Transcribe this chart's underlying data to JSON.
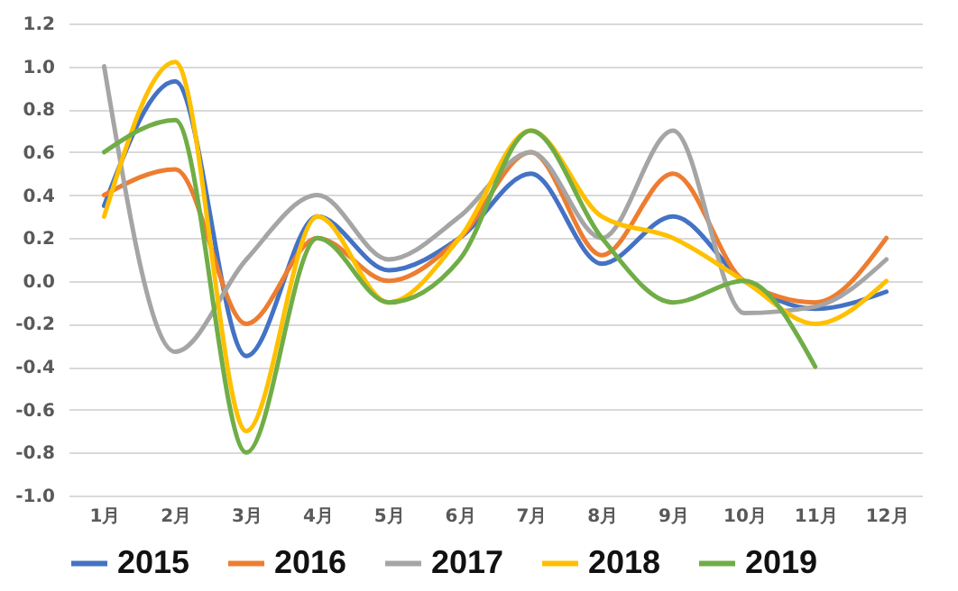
{
  "chart_data": {
    "type": "line",
    "categories": [
      "1月",
      "2月",
      "3月",
      "4月",
      "5月",
      "6月",
      "7月",
      "8月",
      "9月",
      "10月",
      "11月",
      "12月"
    ],
    "series": [
      {
        "name": "2015",
        "color": "#4472c4",
        "values": [
          0.35,
          0.93,
          -0.35,
          0.3,
          0.05,
          0.2,
          0.5,
          0.08,
          0.3,
          0.0,
          -0.13,
          -0.05
        ]
      },
      {
        "name": "2016",
        "color": "#ed7d31",
        "values": [
          0.4,
          0.52,
          -0.2,
          0.2,
          0.0,
          0.2,
          0.6,
          0.12,
          0.5,
          0.0,
          -0.1,
          0.2
        ]
      },
      {
        "name": "2017",
        "color": "#a5a5a5",
        "values": [
          1.0,
          -0.33,
          0.1,
          0.4,
          0.1,
          0.3,
          0.6,
          0.2,
          0.7,
          -0.15,
          -0.12,
          0.1
        ]
      },
      {
        "name": "2018",
        "color": "#ffc000",
        "values": [
          0.3,
          1.02,
          -0.7,
          0.3,
          -0.1,
          0.2,
          0.7,
          0.3,
          0.2,
          0.0,
          -0.2,
          0.0
        ]
      },
      {
        "name": "2019",
        "color": "#70ad47",
        "values": [
          0.6,
          0.75,
          -0.8,
          0.2,
          -0.1,
          0.1,
          0.7,
          0.2,
          -0.1,
          0.0,
          -0.4,
          null
        ]
      }
    ],
    "ylim": [
      -1.0,
      1.2
    ],
    "yticks": [
      {
        "value": -1.0,
        "label": "-1.0"
      },
      {
        "value": -0.8,
        "label": "-0.8"
      },
      {
        "value": -0.6,
        "label": "-0.6"
      },
      {
        "value": -0.4,
        "label": "-0.4"
      },
      {
        "value": -0.2,
        "label": "-0.2"
      },
      {
        "value": 0,
        "label": "0.0"
      },
      {
        "value": 0.2,
        "label": "0.2"
      },
      {
        "value": 0.4,
        "label": "0.4"
      },
      {
        "value": 0.6,
        "label": "0.6"
      },
      {
        "value": 0.8,
        "label": "0.8"
      },
      {
        "value": 1.0,
        "label": "1.0"
      },
      {
        "value": 1.2,
        "label": "1.2"
      }
    ],
    "grid": "y",
    "legend": "bottom",
    "marker": "none",
    "line_style": "solid"
  }
}
